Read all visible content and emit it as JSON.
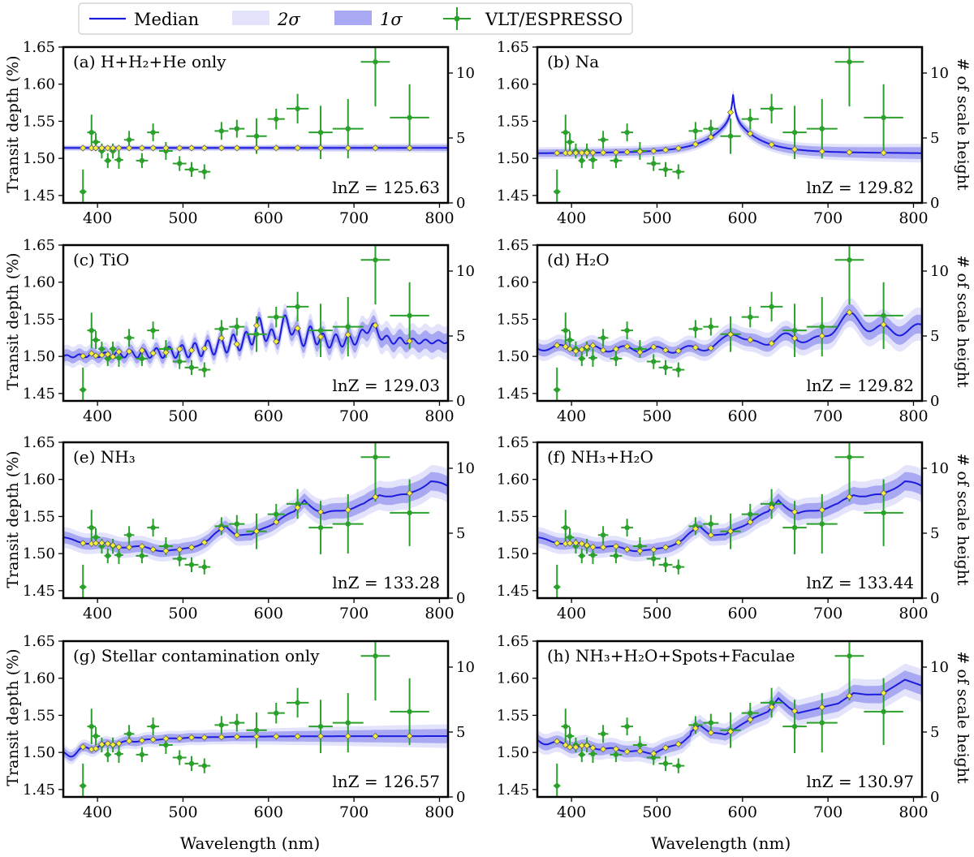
{
  "figure": {
    "y_left_label": "Transit depth (%)",
    "y_right_label": "# of scale height",
    "x_label": "Wavelength (nm)"
  },
  "legend": [
    {
      "id": "median",
      "label": "Median",
      "color": "#1c1cdd"
    },
    {
      "id": "two_sigma",
      "label": "2σ",
      "color": "#e3e3fb"
    },
    {
      "id": "one_sigma",
      "label": "1σ",
      "color": "#a9a9f3"
    },
    {
      "id": "vlt",
      "label": "VLT/ESPRESSO",
      "color": "#2ca02c"
    }
  ],
  "chart_data": [
    {
      "type": "line",
      "id": "a",
      "title": "(a) H+H₂+He only",
      "lnZ_label": "lnZ = 125.63",
      "model": "flat",
      "xlim": [
        360,
        810
      ],
      "ylim": [
        1.44,
        1.65
      ],
      "y2lim": [
        0,
        12
      ]
    },
    {
      "type": "line",
      "id": "b",
      "title": "(b) Na",
      "lnZ_label": "lnZ = 129.82",
      "model": "na",
      "xlim": [
        360,
        810
      ],
      "ylim": [
        1.44,
        1.65
      ],
      "y2lim": [
        0,
        12
      ]
    },
    {
      "type": "line",
      "id": "c",
      "title": "(c) TiO",
      "lnZ_label": "lnZ = 129.03",
      "model": "tio",
      "xlim": [
        360,
        810
      ],
      "ylim": [
        1.44,
        1.65
      ],
      "y2lim": [
        0,
        12
      ]
    },
    {
      "type": "line",
      "id": "d",
      "title": "(d) H₂O",
      "lnZ_label": "lnZ = 129.82",
      "model": "h2o",
      "xlim": [
        360,
        810
      ],
      "ylim": [
        1.44,
        1.65
      ],
      "y2lim": [
        0,
        12
      ]
    },
    {
      "type": "line",
      "id": "e",
      "title": "(e) NH₃",
      "lnZ_label": "lnZ = 133.28",
      "model": "nh3",
      "xlim": [
        360,
        810
      ],
      "ylim": [
        1.44,
        1.65
      ],
      "y2lim": [
        0,
        12
      ]
    },
    {
      "type": "line",
      "id": "f",
      "title": "(f) NH₃+H₂O",
      "lnZ_label": "lnZ = 133.44",
      "model": "nh3h2o",
      "xlim": [
        360,
        810
      ],
      "ylim": [
        1.44,
        1.65
      ],
      "y2lim": [
        0,
        12
      ]
    },
    {
      "type": "line",
      "id": "g",
      "title": "(g) Stellar contamination only",
      "lnZ_label": "lnZ = 126.57",
      "model": "stellar",
      "xlim": [
        360,
        810
      ],
      "ylim": [
        1.44,
        1.65
      ],
      "y2lim": [
        0,
        12
      ]
    },
    {
      "type": "line",
      "id": "h",
      "title": "(h) NH₃+H₂O+Spots+Faculae",
      "lnZ_label": "lnZ = 130.97",
      "model": "full",
      "xlim": [
        360,
        810
      ],
      "ylim": [
        1.44,
        1.65
      ],
      "y2lim": [
        0,
        12
      ]
    }
  ],
  "observations": [
    {
      "x": 383,
      "xerr": 4,
      "y": 1.455,
      "yerr": 0.03
    },
    {
      "x": 393,
      "xerr": 5,
      "y": 1.535,
      "yerr": 0.024
    },
    {
      "x": 398,
      "xerr": 5,
      "y": 1.522,
      "yerr": 0.012
    },
    {
      "x": 405,
      "xerr": 4,
      "y": 1.51,
      "yerr": 0.01
    },
    {
      "x": 412,
      "xerr": 4,
      "y": 1.497,
      "yerr": 0.01
    },
    {
      "x": 418,
      "xerr": 4,
      "y": 1.51,
      "yerr": 0.01
    },
    {
      "x": 425,
      "xerr": 5,
      "y": 1.498,
      "yerr": 0.012
    },
    {
      "x": 437,
      "xerr": 6,
      "y": 1.525,
      "yerr": 0.012
    },
    {
      "x": 452,
      "xerr": 7,
      "y": 1.497,
      "yerr": 0.01
    },
    {
      "x": 465,
      "xerr": 7,
      "y": 1.535,
      "yerr": 0.012
    },
    {
      "x": 480,
      "xerr": 8,
      "y": 1.51,
      "yerr": 0.012
    },
    {
      "x": 496,
      "xerr": 8,
      "y": 1.493,
      "yerr": 0.01
    },
    {
      "x": 510,
      "xerr": 8,
      "y": 1.485,
      "yerr": 0.01
    },
    {
      "x": 525,
      "xerr": 7,
      "y": 1.482,
      "yerr": 0.01
    },
    {
      "x": 545,
      "xerr": 8,
      "y": 1.537,
      "yerr": 0.012
    },
    {
      "x": 563,
      "xerr": 9,
      "y": 1.54,
      "yerr": 0.012
    },
    {
      "x": 586,
      "xerr": 12,
      "y": 1.53,
      "yerr": 0.024
    },
    {
      "x": 609,
      "xerr": 10,
      "y": 1.553,
      "yerr": 0.014
    },
    {
      "x": 634,
      "xerr": 13,
      "y": 1.567,
      "yerr": 0.02
    },
    {
      "x": 661,
      "xerr": 14,
      "y": 1.535,
      "yerr": 0.036
    },
    {
      "x": 693,
      "xerr": 18,
      "y": 1.54,
      "yerr": 0.04
    },
    {
      "x": 725,
      "xerr": 17,
      "y": 1.63,
      "yerr": 0.06
    },
    {
      "x": 765,
      "xerr": 23,
      "y": 1.555,
      "yerr": 0.045
    }
  ]
}
